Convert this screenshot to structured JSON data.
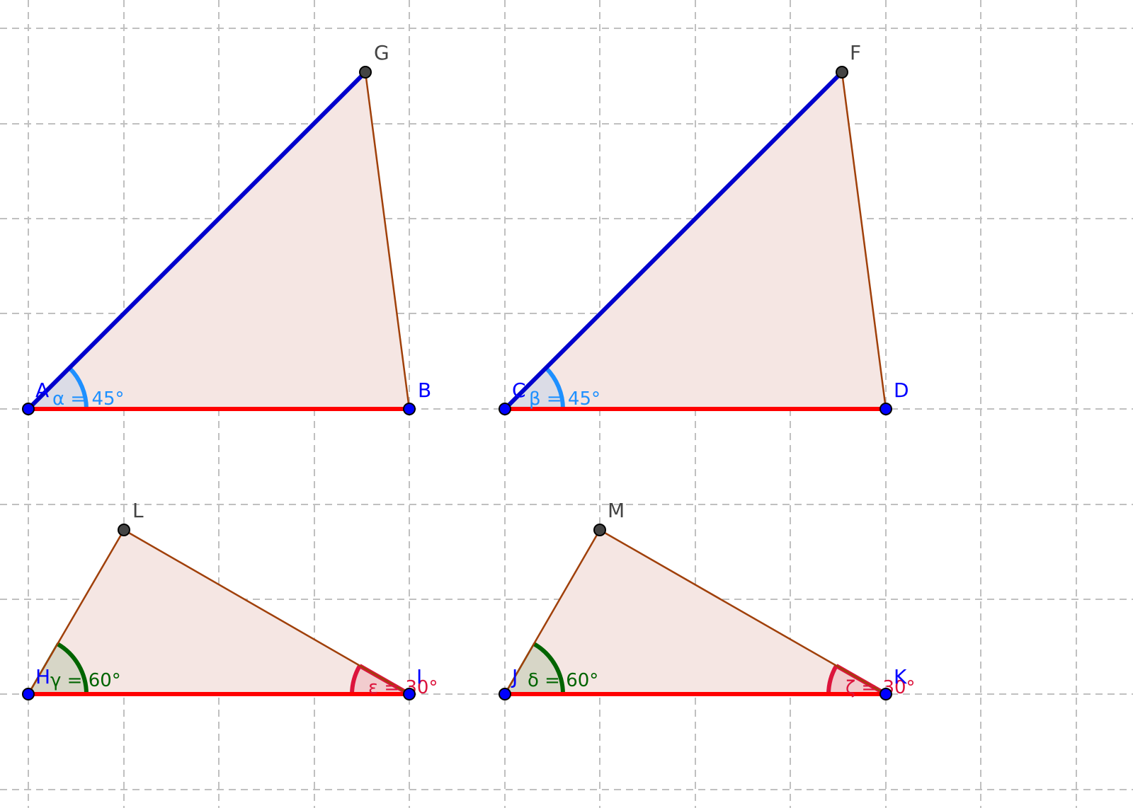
{
  "points": {
    "A": "A",
    "B": "B",
    "G": "G",
    "C": "C",
    "D": "D",
    "F": "F",
    "H": "H",
    "I": "I",
    "L": "L",
    "J": "J",
    "K": "K",
    "M": "M"
  },
  "angles": {
    "alpha": "α = 45°",
    "beta": "β = 45°",
    "gamma": "γ = 60°",
    "epsilon": "ε = 30°",
    "delta": "δ = 60°",
    "zeta": "ζ = 30°"
  },
  "colors": {
    "fill": "#f5e6e3",
    "edge": "#a0400a",
    "base": "#ff0000",
    "side_blue": "#0000cd",
    "angle_blue": "#1e90ff",
    "angle_green": "#006400",
    "angle_red": "#dc143c",
    "point_free": "#0000ff",
    "point_dependent": "#444444"
  }
}
